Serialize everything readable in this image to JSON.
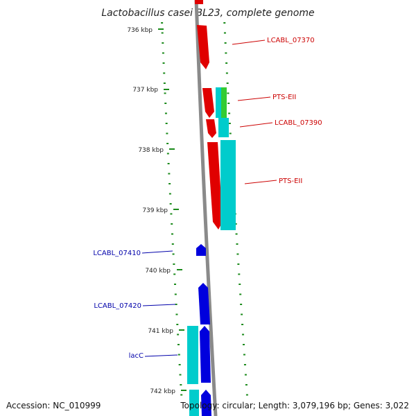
{
  "title": "Lactobacillus casei BL23, complete genome",
  "footer": {
    "accession": "Accession: NC_010999",
    "topology": "Topology: circular; Length: 3,079,196 bp; Genes: 3,022"
  },
  "colors": {
    "backbone": "#8a8a8a",
    "tick": "#1a8a1a",
    "red_feature": "#e00000",
    "blue_feature": "#0000dd",
    "cyan_feature": "#00cccc",
    "green_feature": "#33cc33",
    "red_label": "#cc0000",
    "blue_label": "#0000aa"
  },
  "ticks": [
    "736 kbp",
    "737 kbp",
    "738 kbp",
    "739 kbp",
    "740 kbp",
    "741 kbp",
    "742 kbp"
  ],
  "gene_labels": {
    "lcabl_07370": "LCABL_07370",
    "pts_eii_1": "PTS-EII",
    "lcabl_07390": "LCABL_07390",
    "pts_eii_2": "PTS-EII",
    "lcabl_07410": "LCABL_07410",
    "lcabl_07420": "LCABL_07420",
    "lacc": "lacC"
  }
}
